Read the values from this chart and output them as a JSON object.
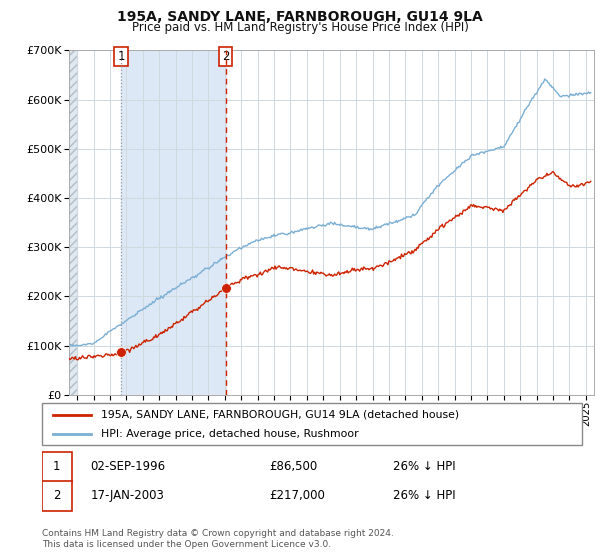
{
  "title": "195A, SANDY LANE, FARNBOROUGH, GU14 9LA",
  "subtitle": "Price paid vs. HM Land Registry's House Price Index (HPI)",
  "sale1_date": "02-SEP-1996",
  "sale1_price": 86500,
  "sale1_label": "1",
  "sale1_year": 1996.67,
  "sale2_date": "17-JAN-2003",
  "sale2_price": 217000,
  "sale2_label": "2",
  "sale2_year": 2003.04,
  "legend_line1": "195A, SANDY LANE, FARNBOROUGH, GU14 9LA (detached house)",
  "legend_line2": "HPI: Average price, detached house, Rushmoor",
  "hpi_color": "#7bafd4",
  "property_color": "#cc2200",
  "marker_color": "#cc2200",
  "vline1_color": "#aaaaaa",
  "vline2_color": "#cc2200",
  "shade_color": "#dce8f5",
  "ylim": [
    0,
    700000
  ],
  "xlim_start": 1993.5,
  "xlim_end": 2025.5,
  "background_color": "#ffffff",
  "footnote": "Contains HM Land Registry data © Crown copyright and database right 2024.\nThis data is licensed under the Open Government Licence v3.0."
}
